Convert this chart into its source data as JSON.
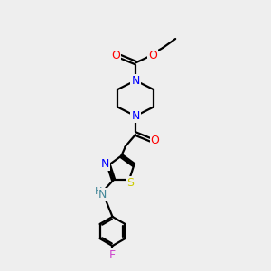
{
  "bg_color": "#eeeeee",
  "bond_color": "#000000",
  "colors": {
    "O": "#ff0000",
    "N": "#0000ff",
    "S": "#cccc00",
    "F": "#cc44cc",
    "NH_H": "#448899",
    "NH_N": "#448899"
  },
  "figsize": [
    3.0,
    3.0
  ],
  "dpi": 100
}
